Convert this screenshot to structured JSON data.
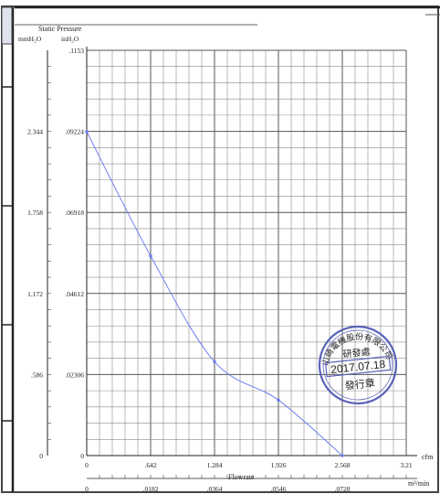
{
  "chart_data": {
    "type": "line",
    "title": "Static Pressure",
    "y_units": [
      "mmH₂O",
      "inH₂O"
    ],
    "y_left_ticks": [
      "2.344",
      "1.758",
      "1.172",
      ".586",
      "0"
    ],
    "y_inner_ticks": [
      ".1153",
      ".09224",
      ".06918",
      ".04612",
      ".02306",
      "0"
    ],
    "x_ticks": [
      "0",
      ".642",
      "1.284",
      "1.926",
      "2.568",
      "3.21"
    ],
    "x_unit": "cfm",
    "x2_ticks": [
      "0",
      ".0182",
      ".0364",
      ".0546",
      ".0728"
    ],
    "x2_unit": "m³/min",
    "xlabel": "Flowrate",
    "xlim": [
      0,
      3.21
    ],
    "ylim": [
      0,
      0.1153
    ],
    "series": [
      {
        "color": "#6f7ff0",
        "x": [
          0,
          0.642,
          1.284,
          1.926,
          2.568
        ],
        "y": [
          0.0922,
          0.0568,
          0.0267,
          0.0158,
          0
        ]
      }
    ]
  },
  "stamp": {
    "line1": "山崎電機股份有限公司",
    "line2": "研發處",
    "date": "2017.07.18",
    "line3": "發行章"
  }
}
